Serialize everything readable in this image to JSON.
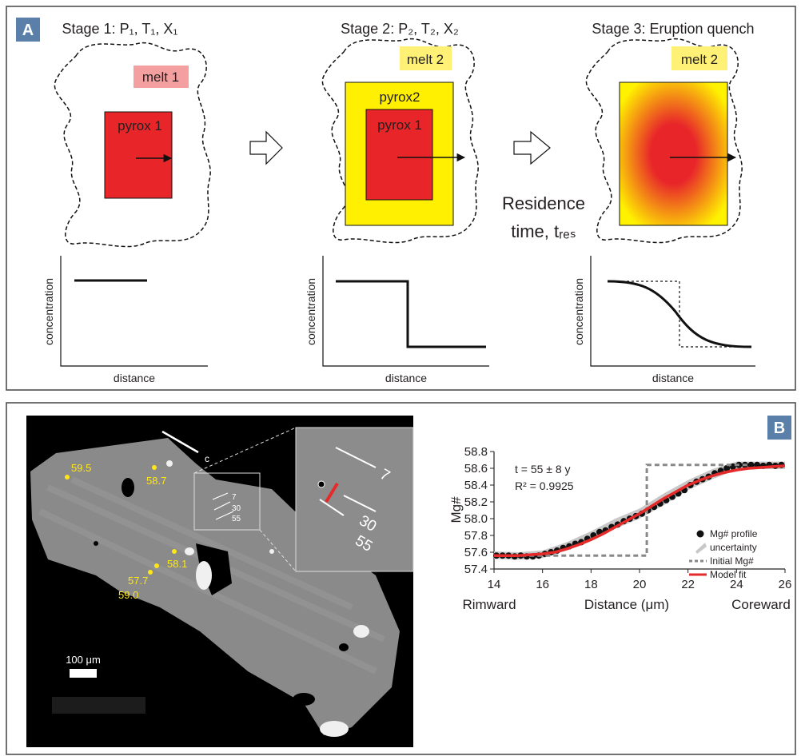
{
  "panel_a": {
    "label": "A",
    "stages": [
      {
        "title": "Stage 1: P₁, T₁, X₁",
        "melt": "melt 1",
        "crystals": [
          "pyrox 1"
        ]
      },
      {
        "title": "Stage 2: P₂, T₂, X₂",
        "melt": "melt 2",
        "crystals": [
          "pyrox2",
          "pyrox 1"
        ]
      },
      {
        "title": "Stage 3: Eruption quench",
        "melt": "melt 2"
      }
    ],
    "residence": [
      "Residence",
      "time, tᵣₑₛ"
    ],
    "plot_y_label": "concentration",
    "plot_x_label": "distance"
  },
  "panel_b": {
    "label": "B",
    "scale_bar": "100 μm",
    "axis_label": "c",
    "spot_labels": [
      "59.5",
      "58.7",
      "58.1",
      "57.7",
      "59.0"
    ],
    "inset_labels": [
      "7",
      "30",
      "55"
    ]
  },
  "chart_data": {
    "type": "line",
    "x_label": "Distance (μm)",
    "y_label": "Mg#",
    "x_end_labels": [
      "Rimward",
      "Coreward"
    ],
    "annotations": [
      "t = 55 ± 8 y",
      "R² = 0.9925"
    ],
    "xlim": [
      14,
      26
    ],
    "ylim": [
      57.4,
      58.8
    ],
    "xticks": [
      14,
      16,
      18,
      20,
      22,
      24,
      26
    ],
    "yticks": [
      57.4,
      57.6,
      57.8,
      {
        "value": 58,
        "label": "58.0"
      },
      58.2,
      58.4,
      58.6,
      58.8
    ],
    "legend": "lower right",
    "series": [
      {
        "name": "uncertainty",
        "style": "band",
        "color": "#c8c8c8",
        "x": [
          14,
          15,
          16,
          17,
          18,
          19,
          20,
          21,
          22,
          23,
          24,
          25,
          26
        ],
        "values": [
          57.61,
          57.6,
          57.62,
          57.72,
          57.85,
          58.0,
          58.12,
          58.3,
          58.46,
          58.59,
          58.68,
          58.68,
          58.68
        ],
        "lower": [
          57.52,
          57.51,
          57.53,
          57.62,
          57.74,
          57.88,
          58.0,
          58.16,
          58.34,
          58.47,
          58.58,
          58.59,
          58.59
        ]
      },
      {
        "name": "Mg# profile",
        "style": "scatter",
        "color": "#111111",
        "x": [
          14.1,
          14.35,
          14.6,
          14.85,
          15.1,
          15.35,
          15.6,
          15.85,
          16.1,
          16.35,
          16.6,
          16.85,
          17.1,
          17.35,
          17.6,
          17.85,
          18.1,
          18.35,
          18.6,
          18.85,
          19.1,
          19.35,
          19.6,
          19.85,
          20.1,
          20.35,
          20.6,
          20.85,
          21.1,
          21.35,
          21.6,
          21.85,
          22.1,
          22.35,
          22.6,
          22.85,
          23.1,
          23.35,
          23.6,
          23.85,
          24.1,
          24.35,
          24.6,
          24.85,
          25.1,
          25.35,
          25.6,
          25.85
        ],
        "values": [
          57.56,
          57.56,
          57.56,
          57.55,
          57.56,
          57.55,
          57.55,
          57.56,
          57.58,
          57.6,
          57.62,
          57.65,
          57.67,
          57.7,
          57.72,
          57.76,
          57.8,
          57.84,
          57.86,
          57.9,
          57.93,
          57.97,
          58.0,
          58.03,
          58.06,
          58.1,
          58.14,
          58.18,
          58.22,
          58.26,
          58.3,
          58.34,
          58.4,
          58.44,
          58.47,
          58.5,
          58.54,
          58.57,
          58.6,
          58.62,
          58.64,
          58.64,
          58.64,
          58.64,
          58.63,
          58.64,
          58.63,
          58.64
        ]
      },
      {
        "name": "Initial Mg#",
        "style": "dashed",
        "color": "#888888",
        "x": [
          14.8,
          20.3,
          20.3,
          24.5
        ],
        "values": [
          57.56,
          57.56,
          58.64,
          58.64
        ]
      },
      {
        "name": "Model fit",
        "style": "line",
        "color": "#e62a2a",
        "x": [
          14,
          14.5,
          15,
          15.5,
          16,
          16.5,
          17,
          17.5,
          18,
          18.5,
          19,
          19.5,
          20,
          20.5,
          21,
          21.5,
          22,
          22.5,
          23,
          23.5,
          24,
          24.5,
          25,
          25.5,
          26
        ],
        "values": [
          57.56,
          57.56,
          57.56,
          57.57,
          57.58,
          57.6,
          57.64,
          57.69,
          57.75,
          57.82,
          57.9,
          57.98,
          58.06,
          58.15,
          58.24,
          58.32,
          58.4,
          58.46,
          58.51,
          58.55,
          58.58,
          58.6,
          58.61,
          58.62,
          58.63
        ]
      }
    ]
  }
}
